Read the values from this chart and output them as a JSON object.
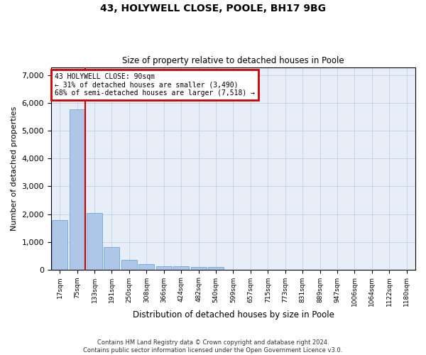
{
  "title1": "43, HOLYWELL CLOSE, POOLE, BH17 9BG",
  "title2": "Size of property relative to detached houses in Poole",
  "xlabel": "Distribution of detached houses by size in Poole",
  "ylabel": "Number of detached properties",
  "bar_labels": [
    "17sqm",
    "75sqm",
    "133sqm",
    "191sqm",
    "250sqm",
    "308sqm",
    "366sqm",
    "424sqm",
    "482sqm",
    "540sqm",
    "599sqm",
    "657sqm",
    "715sqm",
    "773sqm",
    "831sqm",
    "889sqm",
    "947sqm",
    "1006sqm",
    "1064sqm",
    "1122sqm",
    "1180sqm"
  ],
  "bar_values": [
    1780,
    5780,
    2050,
    820,
    340,
    185,
    120,
    110,
    100,
    85,
    0,
    0,
    0,
    0,
    0,
    0,
    0,
    0,
    0,
    0,
    0
  ],
  "bar_color": "#aec6e8",
  "bar_edge_color": "#5a9fd4",
  "property_label": "43 HOLYWELL CLOSE: 90sqm",
  "annotation_line1": "← 31% of detached houses are smaller (3,490)",
  "annotation_line2": "68% of semi-detached houses are larger (7,518) →",
  "annotation_box_color": "#ffffff",
  "annotation_box_edge": "#cc0000",
  "ylim": [
    0,
    7300
  ],
  "yticks": [
    0,
    1000,
    2000,
    3000,
    4000,
    5000,
    6000,
    7000
  ],
  "grid_color": "#c8d4e8",
  "bg_color": "#e8eef7",
  "footer1": "Contains HM Land Registry data © Crown copyright and database right 2024.",
  "footer2": "Contains public sector information licensed under the Open Government Licence v3.0.",
  "vline_color": "#cc0000",
  "vline_x_index": 1
}
